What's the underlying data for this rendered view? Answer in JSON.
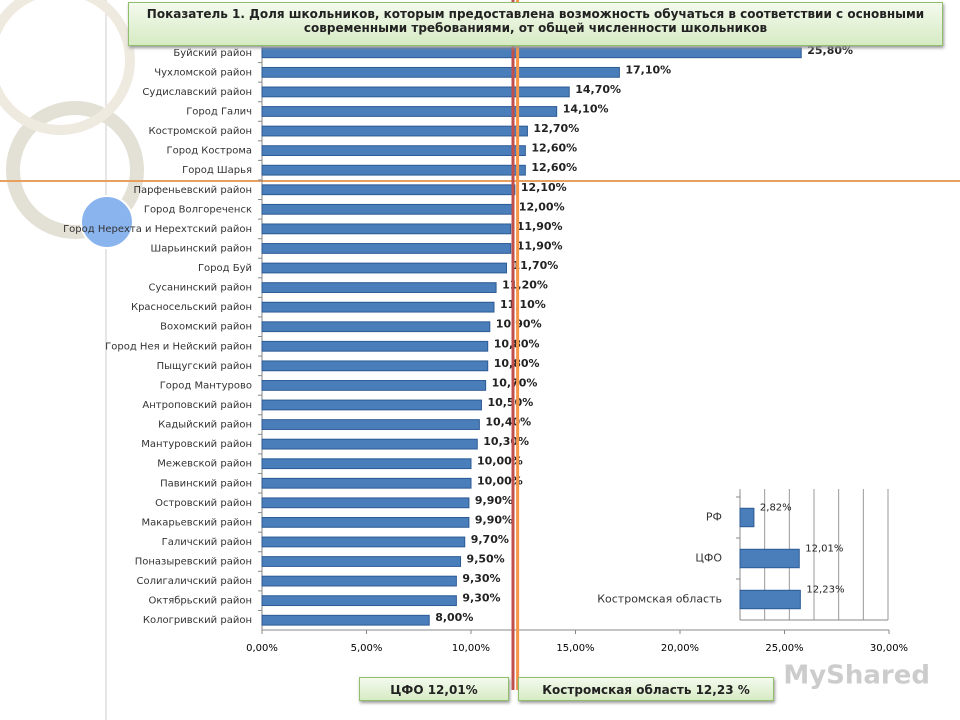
{
  "chart_data": [
    {
      "type": "bar",
      "title": "Показатель 1. Доля школьников, которым предоставлена возможность обучаться в соответствии с основными современными требованиями, от общей численности школьников",
      "categories": [
        "Буйский район",
        "Чухломской район",
        "Судиславский район",
        "Город Галич",
        "Костромской район",
        "Город Кострома",
        "Город Шарья",
        "Парфеньевский район",
        "Город Волгореченск",
        "Город Нерехта и Нерехтский район",
        "Шарьинский район",
        "Город Буй",
        "Сусанинский район",
        "Красносельский район",
        "Вохомский район",
        "Город Нея и Нейский район",
        "Пыщугский район",
        "Город Мантурово",
        "Антроповский район",
        "Кадыйский район",
        "Мантуровский район",
        "Межевской район",
        "Павинский район",
        "Островский район",
        "Макарьевский район",
        "Галичский район",
        "Поназыревский район",
        "Солигаличский район",
        "Октябрьский район",
        "Кологривский район"
      ],
      "values": [
        25.8,
        17.1,
        14.7,
        14.1,
        12.7,
        12.6,
        12.6,
        12.1,
        12.0,
        11.9,
        11.9,
        11.7,
        11.2,
        11.1,
        10.9,
        10.8,
        10.8,
        10.7,
        10.5,
        10.4,
        10.3,
        10.0,
        10.0,
        9.9,
        9.9,
        9.7,
        9.5,
        9.3,
        9.3,
        8.0
      ],
      "value_labels": [
        "25,80%",
        "17,10%",
        "14,70%",
        "14,10%",
        "12,70%",
        "12,60%",
        "12,60%",
        "12,10%",
        "12,00%",
        "11,90%",
        "11,90%",
        "11,70%",
        "11,20%",
        "11,10%",
        "10,90%",
        "10,80%",
        "10,80%",
        "10,70%",
        "10,50%",
        "10,40%",
        "10,30%",
        "10,00%",
        "10,00%",
        "9,90%",
        "9,90%",
        "9,70%",
        "9,50%",
        "9,30%",
        "9,30%",
        "8,00%"
      ],
      "color": "#4a7ebb",
      "xlim": [
        0,
        30
      ],
      "xticks": [
        {
          "value": 0,
          "label": "0,00%"
        },
        {
          "value": 5,
          "label": "5,00%"
        },
        {
          "value": 10,
          "label": "10,00%"
        },
        {
          "value": 15,
          "label": "15,00%"
        },
        {
          "value": 20,
          "label": "20,00%"
        },
        {
          "value": 25,
          "label": "25,00%"
        },
        {
          "value": 30,
          "label": "30,00%"
        }
      ],
      "reference_lines": [
        {
          "label": "ЦФО 12,01%",
          "value": 12.01,
          "color": "#c0504d"
        },
        {
          "label": "Костромская область  12,23 %",
          "value": 12.23,
          "color": "#f79646"
        }
      ]
    },
    {
      "type": "bar",
      "categories": [
        "РФ",
        "ЦФО",
        "Костромская область"
      ],
      "values": [
        2.82,
        12.01,
        12.23
      ],
      "value_labels": [
        "2,82%",
        "12,01%",
        "12,23%"
      ],
      "color": "#4a7ebb",
      "xlim": [
        0,
        30
      ],
      "xticks": [
        0,
        5,
        10,
        15,
        20,
        25,
        30
      ]
    }
  ],
  "watermark": "MyShared"
}
